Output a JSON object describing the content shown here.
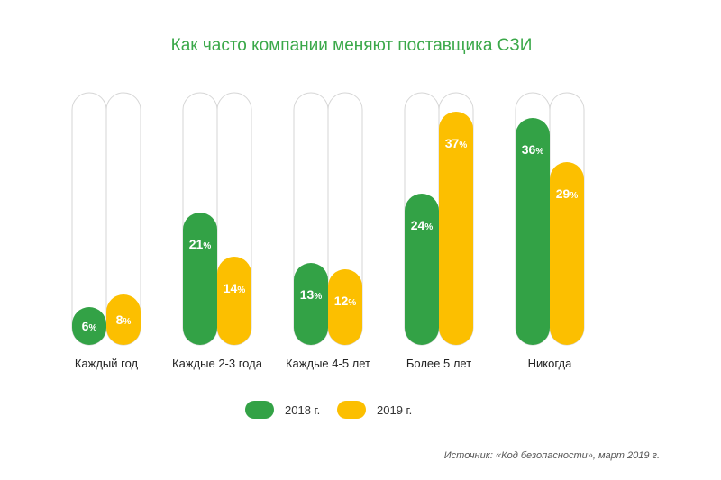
{
  "chart_data": {
    "type": "bar",
    "title": "Как часто компании меняют поставщика СЗИ",
    "categories": [
      "Каждый год",
      "Каждые 2-3 года",
      "Каждые 4-5 лет",
      "Более 5 лет",
      "Никогда"
    ],
    "series": [
      {
        "name": "2018 г.",
        "values": [
          6,
          21,
          13,
          24,
          36
        ],
        "color": "#33a246"
      },
      {
        "name": "2019 г.",
        "values": [
          8,
          14,
          12,
          37,
          29
        ],
        "color": "#fcbf00"
      }
    ],
    "value_suffix": "%",
    "ylim": [
      0,
      40
    ],
    "grid": false,
    "legend_position": "bottom",
    "track_color": "#d6d6d6"
  },
  "source": "Источник: «Код безопасности», март 2019 г."
}
